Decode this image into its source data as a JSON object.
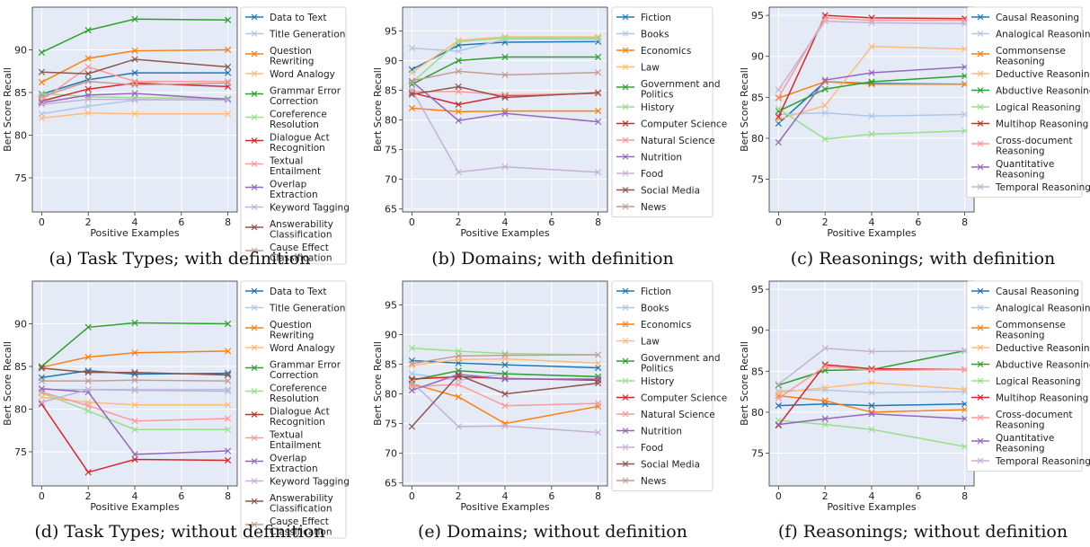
{
  "captions": [
    "(a) Task Types; with definition",
    "(b) Domains; with definition",
    "(c) Reasonings; with definition",
    "(d) Task Types; without definition",
    "(e) Domains; without definition",
    "(f) Reasonings; without definition"
  ],
  "colors": [
    "#1f77b4",
    "#aec7e8",
    "#ff7f0e",
    "#ffbb78",
    "#2ca02c",
    "#98df8a",
    "#d62728",
    "#ff9896",
    "#9467bd",
    "#c5b0d5",
    "#8c564b",
    "#c49c94"
  ],
  "plot_background": "#e5ebf6",
  "chart_data": [
    {
      "type": "line",
      "xlabel": "Positive Examples",
      "ylabel": "Bert Score Recall",
      "x": [
        0,
        2,
        4,
        8
      ],
      "xlim": [
        -0.4,
        8.4
      ],
      "ylim": [
        71,
        95
      ],
      "xticks": [
        0,
        2,
        4,
        6,
        8
      ],
      "yticks": [
        75,
        80,
        85,
        90
      ],
      "grid": true,
      "legend": "right-outside",
      "series": [
        {
          "name": "Data to Text",
          "values": [
            84.8,
            86.5,
            87.3,
            87.3
          ]
        },
        {
          "name": "Title Generation",
          "values": [
            82.5,
            83.4,
            84.1,
            84.2
          ]
        },
        {
          "name": "Question Rewriting",
          "values": [
            86.2,
            89.0,
            89.9,
            90.0
          ]
        },
        {
          "name": "Word Analogy",
          "values": [
            82.0,
            82.6,
            82.5,
            82.5
          ]
        },
        {
          "name": "Grammar Error Correction",
          "values": [
            89.7,
            92.3,
            93.6,
            93.5
          ]
        },
        {
          "name": "Coreference Resolution",
          "values": [
            84.9,
            84.5,
            84.4,
            84.3
          ]
        },
        {
          "name": "Dialogue Act Recognition",
          "values": [
            84.0,
            85.4,
            86.1,
            85.7
          ]
        },
        {
          "name": "Textual Entailment",
          "values": [
            84.1,
            88.0,
            86.3,
            86.3
          ]
        },
        {
          "name": "Overlap Extraction",
          "values": [
            83.8,
            84.7,
            84.9,
            84.2
          ]
        },
        {
          "name": "Keyword Tagging",
          "values": [
            83.6,
            84.2,
            84.2,
            84.1
          ]
        },
        {
          "name": "Answerability Classification",
          "values": [
            87.4,
            87.2,
            88.9,
            88.0
          ]
        },
        {
          "name": "Cause Effect Classification",
          "values": [
            84.5,
            86.3,
            85.9,
            86.1
          ]
        }
      ]
    },
    {
      "type": "line",
      "xlabel": "Positive Examples",
      "ylabel": "Bert Score Recall",
      "x": [
        0,
        2,
        4,
        8
      ],
      "xlim": [
        -0.4,
        8.4
      ],
      "ylim": [
        64.5,
        99
      ],
      "xticks": [
        0,
        2,
        4,
        6,
        8
      ],
      "yticks": [
        65,
        70,
        75,
        80,
        85,
        90,
        95
      ],
      "grid": true,
      "legend": "right-outside",
      "series": [
        {
          "name": "Fiction",
          "values": [
            88.5,
            92.6,
            93.1,
            93.2
          ]
        },
        {
          "name": "Books",
          "values": [
            92.1,
            91.6,
            93.6,
            93.6
          ]
        },
        {
          "name": "Economics",
          "values": [
            82.0,
            81.4,
            81.5,
            81.5
          ]
        },
        {
          "name": "Law",
          "values": [
            88.0,
            93.4,
            94.0,
            94.0
          ]
        },
        {
          "name": "Government and Politics",
          "values": [
            86.0,
            90.0,
            90.6,
            90.6
          ]
        },
        {
          "name": "History",
          "values": [
            86.3,
            93.2,
            93.8,
            93.8
          ]
        },
        {
          "name": "Computer Science",
          "values": [
            84.6,
            82.6,
            84.1,
            84.5
          ]
        },
        {
          "name": "Natural Science",
          "values": [
            84.8,
            84.8,
            84.2,
            84.5
          ]
        },
        {
          "name": "Nutrition",
          "values": [
            86.5,
            79.9,
            81.1,
            79.7
          ]
        },
        {
          "name": "Food",
          "values": [
            85.1,
            71.2,
            72.1,
            71.2
          ]
        },
        {
          "name": "Social Media",
          "values": [
            84.3,
            85.6,
            83.8,
            84.6
          ]
        },
        {
          "name": "News",
          "values": [
            86.6,
            88.2,
            87.6,
            88.0
          ]
        }
      ]
    },
    {
      "type": "line",
      "xlabel": "Positive Examples",
      "ylabel": "Bert Score Recall",
      "x": [
        0,
        2,
        4,
        8
      ],
      "xlim": [
        -0.4,
        8.4
      ],
      "ylim": [
        71,
        96
      ],
      "xticks": [
        0,
        2,
        4,
        6,
        8
      ],
      "yticks": [
        75,
        80,
        85,
        90,
        95
      ],
      "grid": true,
      "legend": "right-outside",
      "series": [
        {
          "name": "Causal Reasoning",
          "values": [
            81.8,
            86.9,
            86.7,
            86.6
          ]
        },
        {
          "name": "Analogical Reasoning",
          "values": [
            82.9,
            83.1,
            82.7,
            82.9
          ]
        },
        {
          "name": "Commonsense Reasoning",
          "values": [
            84.9,
            86.9,
            86.6,
            86.6
          ]
        },
        {
          "name": "Deductive Reasoning",
          "values": [
            82.3,
            84.0,
            91.2,
            90.9
          ]
        },
        {
          "name": "Abductive Reasoning",
          "values": [
            83.3,
            86.0,
            86.9,
            87.6
          ]
        },
        {
          "name": "Logical Reasoning",
          "values": [
            83.6,
            79.9,
            80.5,
            80.9
          ]
        },
        {
          "name": "Multihop Reasoning",
          "values": [
            82.6,
            95.0,
            94.7,
            94.6
          ]
        },
        {
          "name": "Cross-document Reasoning",
          "values": [
            85.0,
            94.7,
            94.4,
            94.4
          ]
        },
        {
          "name": "Quantitative Reasoning",
          "values": [
            79.5,
            87.1,
            88.0,
            88.7
          ]
        },
        {
          "name": "Temporal Reasoning",
          "values": [
            85.9,
            94.3,
            94.1,
            94.0
          ]
        }
      ]
    },
    {
      "type": "line",
      "xlabel": "Positive Examples",
      "ylabel": "Bert Score Recall",
      "x": [
        0,
        2,
        4,
        8
      ],
      "xlim": [
        -0.4,
        8.4
      ],
      "ylim": [
        71,
        95
      ],
      "xticks": [
        0,
        2,
        4,
        6,
        8
      ],
      "yticks": [
        75,
        80,
        85,
        90
      ],
      "grid": true,
      "legend": "right-outside",
      "series": [
        {
          "name": "Data to Text",
          "values": [
            83.7,
            84.5,
            84.1,
            84.2
          ]
        },
        {
          "name": "Title Generation",
          "values": [
            82.3,
            82.3,
            82.3,
            82.3
          ]
        },
        {
          "name": "Question Rewriting",
          "values": [
            84.9,
            86.1,
            86.6,
            86.8
          ]
        },
        {
          "name": "Word Analogy",
          "values": [
            81.4,
            80.8,
            80.5,
            80.5
          ]
        },
        {
          "name": "Grammar Error Correction",
          "values": [
            85.0,
            89.6,
            90.1,
            90.0
          ]
        },
        {
          "name": "Coreference Resolution",
          "values": [
            81.9,
            79.8,
            77.6,
            77.6
          ]
        },
        {
          "name": "Dialogue Act Recognition",
          "values": [
            80.6,
            72.6,
            74.1,
            74.0
          ]
        },
        {
          "name": "Textual Entailment",
          "values": [
            82.0,
            80.4,
            78.6,
            78.9
          ]
        },
        {
          "name": "Overlap Extraction",
          "values": [
            82.4,
            82.0,
            74.7,
            75.1
          ]
        },
        {
          "name": "Keyword Tagging",
          "values": [
            80.8,
            82.3,
            82.2,
            82.1
          ]
        },
        {
          "name": "Answerability Classification",
          "values": [
            84.8,
            84.3,
            84.3,
            84.0
          ]
        },
        {
          "name": "Cause Effect Classification",
          "values": [
            83.3,
            83.3,
            83.4,
            83.3
          ]
        }
      ]
    },
    {
      "type": "line",
      "xlabel": "Positive Examples",
      "ylabel": "Bert Score Recall",
      "x": [
        0,
        2,
        4,
        8
      ],
      "xlim": [
        -0.4,
        8.4
      ],
      "ylim": [
        64.5,
        99
      ],
      "xticks": [
        0,
        2,
        4,
        6,
        8
      ],
      "yticks": [
        65,
        70,
        75,
        80,
        85,
        90,
        95
      ],
      "grid": true,
      "legend": "right-outside",
      "series": [
        {
          "name": "Fiction",
          "values": [
            85.6,
            85.2,
            84.9,
            84.4
          ]
        },
        {
          "name": "Books",
          "values": [
            83.4,
            82.3,
            83.4,
            82.9
          ]
        },
        {
          "name": "Economics",
          "values": [
            81.7,
            79.5,
            75.0,
            77.9
          ]
        },
        {
          "name": "Law",
          "values": [
            84.8,
            85.8,
            85.9,
            85.2
          ]
        },
        {
          "name": "Government and Politics",
          "values": [
            82.3,
            83.9,
            83.4,
            82.9
          ]
        },
        {
          "name": "History",
          "values": [
            87.7,
            87.2,
            86.8,
            86.6
          ]
        },
        {
          "name": "Computer Science",
          "values": [
            82.5,
            82.9,
            82.6,
            82.3
          ]
        },
        {
          "name": "Natural Science",
          "values": [
            81.2,
            81.6,
            78.0,
            78.4
          ]
        },
        {
          "name": "Nutrition",
          "values": [
            80.6,
            83.3,
            82.5,
            82.5
          ]
        },
        {
          "name": "Food",
          "values": [
            82.0,
            74.5,
            74.6,
            73.5
          ]
        },
        {
          "name": "Social Media",
          "values": [
            74.5,
            83.2,
            80.0,
            81.8
          ]
        },
        {
          "name": "News",
          "values": [
            85.1,
            86.4,
            86.5,
            86.6
          ]
        }
      ]
    },
    {
      "type": "line",
      "xlabel": "Positive Examples",
      "ylabel": "Bert Score Recall",
      "x": [
        0,
        2,
        4,
        8
      ],
      "xlim": [
        -0.4,
        8.4
      ],
      "ylim": [
        71,
        96
      ],
      "xticks": [
        0,
        2,
        4,
        6,
        8
      ],
      "yticks": [
        75,
        80,
        85,
        90,
        95
      ],
      "grid": true,
      "legend": "right-outside",
      "series": [
        {
          "name": "Causal Reasoning",
          "values": [
            80.8,
            81.0,
            80.8,
            81.0
          ]
        },
        {
          "name": "Analogical Reasoning",
          "values": [
            82.6,
            82.7,
            82.4,
            82.5
          ]
        },
        {
          "name": "Commonsense Reasoning",
          "values": [
            82.0,
            81.4,
            80.0,
            80.3
          ]
        },
        {
          "name": "Deductive Reasoning",
          "values": [
            82.4,
            83.0,
            83.6,
            82.8
          ]
        },
        {
          "name": "Abductive Reasoning",
          "values": [
            83.3,
            85.1,
            85.2,
            87.5
          ]
        },
        {
          "name": "Logical Reasoning",
          "values": [
            79.0,
            78.5,
            77.9,
            75.8
          ]
        },
        {
          "name": "Multihop Reasoning",
          "values": [
            78.4,
            85.8,
            85.3,
            85.2
          ]
        },
        {
          "name": "Cross-document Reasoning",
          "values": [
            81.7,
            85.6,
            85.1,
            85.2
          ]
        },
        {
          "name": "Quantitative Reasoning",
          "values": [
            78.5,
            79.2,
            79.8,
            79.2
          ]
        },
        {
          "name": "Temporal Reasoning",
          "values": [
            83.4,
            87.8,
            87.4,
            87.5
          ]
        }
      ]
    }
  ]
}
